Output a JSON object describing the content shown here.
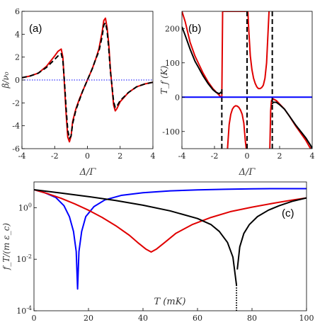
{
  "chart_data": [
    {
      "panel": "(a)",
      "type": "line",
      "xlabel": "Δ/Γ",
      "ylabel": "β/ν₀",
      "xlim": [
        -4,
        4
      ],
      "ylim": [
        -6,
        6
      ],
      "xticks": [
        "-4",
        "-2",
        "0",
        "2",
        "4"
      ],
      "yticks": [
        "6",
        "4",
        "2",
        "0",
        "-2",
        "-4",
        "-6"
      ],
      "series": [
        {
          "color": "#e00000",
          "style": "solid",
          "x": [
            -4,
            -3.5,
            -3,
            -2.5,
            -2,
            -1.8,
            -1.6,
            -1.5,
            -1.4,
            -1.3,
            -1.2,
            -1.1,
            -1.0,
            -0.9,
            -0.7,
            -0.5,
            -0.3,
            0,
            0.3,
            0.5,
            0.7,
            0.9,
            1.0,
            1.1,
            1.2,
            1.3,
            1.4,
            1.5,
            1.6,
            1.7,
            1.8,
            2.0,
            2.5,
            3,
            3.5,
            4
          ],
          "y": [
            0.2,
            0.35,
            0.6,
            1.2,
            2.1,
            2.5,
            2.7,
            2.0,
            -0.5,
            -3.0,
            -5.0,
            -5.4,
            -4.9,
            -3.6,
            -2.5,
            -1.7,
            -1.0,
            0,
            1.0,
            1.8,
            2.7,
            4.2,
            5.2,
            5.4,
            4.6,
            3.2,
            1.0,
            -0.6,
            -2.2,
            -2.7,
            -2.5,
            -1.9,
            -1.1,
            -0.6,
            -0.35,
            -0.2
          ]
        },
        {
          "color": "#000000",
          "style": "dashed",
          "x": [
            -4,
            -3.5,
            -3,
            -2.5,
            -2,
            -1.8,
            -1.6,
            -1.5,
            -1.4,
            -1.3,
            -1.2,
            -1.1,
            -1.0,
            -0.9,
            -0.7,
            -0.5,
            -0.3,
            0,
            0.3,
            0.5,
            0.7,
            0.9,
            1.0,
            1.1,
            1.2,
            1.3,
            1.4,
            1.5,
            1.6,
            1.7,
            1.8,
            2.0,
            2.5,
            3,
            3.5,
            4
          ],
          "y": [
            0.2,
            0.35,
            0.6,
            1.1,
            1.8,
            2.1,
            2.3,
            1.7,
            -0.2,
            -2.5,
            -4.4,
            -5.1,
            -4.9,
            -3.8,
            -2.6,
            -1.8,
            -1.0,
            0,
            1.0,
            1.8,
            2.5,
            3.8,
            4.8,
            5.0,
            4.3,
            2.8,
            0.8,
            -0.5,
            -1.9,
            -2.4,
            -2.3,
            -1.8,
            -1.1,
            -0.6,
            -0.35,
            -0.2
          ]
        },
        {
          "color": "#0000ff",
          "style": "dotted",
          "x": [
            -4,
            4
          ],
          "y": [
            0,
            0
          ]
        }
      ]
    },
    {
      "panel": "(b)",
      "type": "line",
      "xlabel": "Δ/Γ",
      "ylabel": "T_f (K)",
      "xlim": [
        -4,
        4
      ],
      "ylim": [
        -150,
        250
      ],
      "xticks": [
        "-4",
        "-2",
        "0",
        "2",
        "4"
      ],
      "yticks": [
        "200",
        "100",
        "0",
        "-100"
      ],
      "series": [
        {
          "color": "#e00000",
          "style": "solid",
          "segments": [
            {
              "x": [
                -4,
                -3.8,
                -3.5,
                -3.2,
                -3.0,
                -2.7,
                -2.4,
                -2.1,
                -1.9,
                -1.7,
                -1.6,
                -1.55
              ],
              "y": [
                250,
                220,
                160,
                120,
                100,
                70,
                45,
                25,
                15,
                5,
                0,
                0
              ]
            },
            {
              "x": [
                -1.55,
                -1.5,
                -1.45,
                -1.4,
                -1.3,
                -1.2,
                -1.1,
                -1.0,
                -0.9,
                -0.8,
                -0.7,
                -0.6,
                -0.5,
                -0.4,
                -0.3,
                -0.2,
                -0.1,
                -0.05
              ],
              "y": [
                0,
                250,
                250,
                250,
                250,
                250,
                250,
                250,
                250,
                250,
                250,
                250,
                250,
                250,
                250,
                250,
                250,
                250
              ]
            },
            {
              "x": [
                -1.2,
                -1.1,
                -1.0,
                -0.9,
                -0.8,
                -0.7,
                -0.6,
                -0.5,
                -0.4,
                -0.3,
                -0.2,
                -0.1,
                -0.05
              ],
              "y": [
                -150,
                -80,
                -50,
                -35,
                -28,
                -25,
                -26,
                -30,
                -38,
                -50,
                -75,
                -130,
                -150
              ]
            },
            {
              "x": [
                0.05,
                0.1,
                0.2,
                0.3,
                0.4,
                0.5,
                0.6,
                0.7,
                0.8,
                0.9,
                1.0,
                1.1,
                1.2,
                1.3,
                1.35
              ],
              "y": [
                250,
                200,
                120,
                80,
                55,
                40,
                30,
                25,
                25,
                28,
                35,
                55,
                100,
                200,
                250
              ]
            },
            {
              "x": [
                1.4,
                1.45,
                1.5,
                1.6,
                1.8,
                2.0,
                2.3,
                2.6,
                3.0,
                3.3,
                3.6,
                3.9
              ],
              "y": [
                -150,
                -40,
                -10,
                -5,
                -10,
                -20,
                -35,
                -55,
                -85,
                -105,
                -125,
                -150
              ]
            }
          ]
        },
        {
          "color": "#000000",
          "style": "solid",
          "segments": [
            {
              "x": [
                -4,
                -3.8,
                -3.5,
                -3.2,
                -3.0,
                -2.7,
                -2.4,
                -2.1,
                -1.9,
                -1.7,
                -1.6
              ],
              "y": [
                205,
                180,
                140,
                105,
                88,
                62,
                40,
                22,
                14,
                10,
                15
              ]
            },
            {
              "x": [
                1.55,
                1.6,
                1.8,
                2.0,
                2.3,
                2.6,
                3.0,
                3.3,
                3.6,
                3.9,
                4
              ],
              "y": [
                -20,
                -15,
                -15,
                -22,
                -35,
                -55,
                -82,
                -100,
                -118,
                -140,
                -150
              ]
            }
          ]
        },
        {
          "color": "#000000",
          "style": "dashed",
          "segments": [
            {
              "x": [
                -1.55,
                -1.55
              ],
              "y": [
                -150,
                25
              ]
            },
            {
              "x": [
                0,
                0
              ],
              "y": [
                -150,
                250
              ]
            },
            {
              "x": [
                1.55,
                1.55
              ],
              "y": [
                -150,
                250
              ]
            }
          ]
        },
        {
          "color": "#0000ff",
          "style": "solid",
          "segments": [
            {
              "x": [
                -4,
                4
              ],
              "y": [
                0,
                0
              ]
            }
          ]
        }
      ]
    },
    {
      "panel": "(c)",
      "type": "line",
      "xlabel": "T (mK)",
      "ylabel": "f_T/(m ε_c)",
      "yscale": "log",
      "xlim": [
        0,
        100
      ],
      "ylim": [
        0.0001,
        10
      ],
      "xticks": [
        "0",
        "20",
        "40",
        "60",
        "80",
        "100"
      ],
      "yticks": [
        "10^0",
        "10^-2",
        "10^-4"
      ],
      "series": [
        {
          "color": "#0000ff",
          "style": "solid",
          "x": [
            0,
            4,
            8,
            11,
            13,
            14.5,
            15.5,
            16,
            16.5,
            17.5,
            19,
            22,
            26,
            32,
            40,
            50,
            60,
            70,
            80,
            90,
            100
          ],
          "y": [
            5.0,
            3.8,
            2.5,
            1.2,
            0.45,
            0.12,
            0.02,
            0.0007,
            0.02,
            0.12,
            0.45,
            1.1,
            2.0,
            3.0,
            3.8,
            4.5,
            4.9,
            5.2,
            5.4,
            5.5,
            5.5
          ]
        },
        {
          "color": "#e00000",
          "style": "solid",
          "x": [
            0,
            5,
            10,
            15,
            20,
            25,
            30,
            35,
            38,
            41,
            43,
            45,
            48,
            52,
            58,
            65,
            72,
            80,
            88,
            95,
            100
          ],
          "y": [
            5.0,
            3.5,
            2.3,
            1.4,
            0.8,
            0.42,
            0.2,
            0.085,
            0.045,
            0.025,
            0.019,
            0.025,
            0.045,
            0.1,
            0.22,
            0.42,
            0.7,
            1.05,
            1.5,
            2.0,
            2.4
          ]
        },
        {
          "color": "#000000",
          "style": "solid",
          "x": [
            0,
            10,
            20,
            30,
            40,
            50,
            60,
            65,
            68,
            71,
            73,
            74.3
          ],
          "y": [
            5.0,
            3.7,
            2.7,
            1.9,
            1.25,
            0.75,
            0.38,
            0.22,
            0.12,
            0.045,
            0.012,
            0.001
          ]
        },
        {
          "color": "#000000",
          "style": "dotted",
          "x": [
            74.3,
            74.3
          ],
          "y": [
            0.001,
            0.0001
          ]
        },
        {
          "color": "#000000",
          "style": "solid",
          "x": [
            74.6,
            75.5,
            77,
            79,
            82,
            86,
            90,
            95,
            100
          ],
          "y": [
            0.004,
            0.03,
            0.1,
            0.22,
            0.45,
            0.8,
            1.2,
            1.8,
            2.4
          ]
        }
      ]
    }
  ]
}
